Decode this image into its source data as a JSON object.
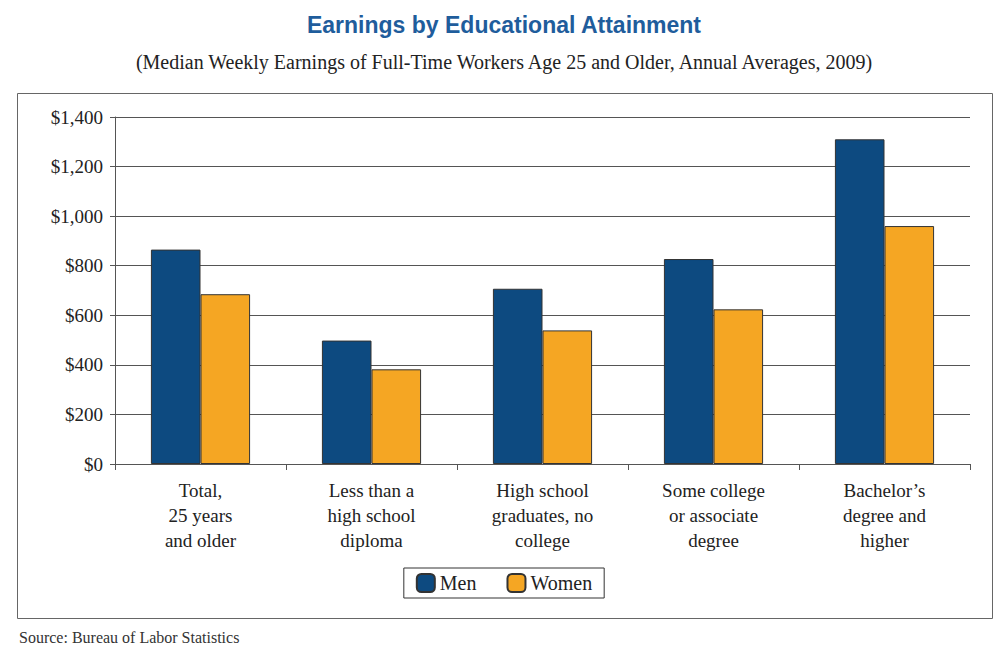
{
  "chart_data": {
    "type": "bar",
    "title": "Earnings by Educational Attainment",
    "subtitle": "(Median Weekly Earnings of Full-Time Workers Age 25 and Older, Annual Averages, 2009)",
    "source": "Source: Bureau of Labor Statistics",
    "categories": [
      "Total,\n25 years\nand older",
      "Less than a\nhigh school\ndiploma",
      "High school\ngraduates, no\ncollege",
      "Some college\nor associate\ndegree",
      "Bachelor’s\ndegree and\nhigher"
    ],
    "series": [
      {
        "name": "Men",
        "color": "#0d4a80",
        "values": [
          865,
          498,
          707,
          827,
          1310
        ]
      },
      {
        "name": "Women",
        "color": "#f5a623",
        "values": [
          685,
          382,
          539,
          624,
          960
        ]
      }
    ],
    "ylim": [
      0,
      1400
    ],
    "yticks": [
      {
        "value": 0,
        "label": "$0"
      },
      {
        "value": 200,
        "label": "$200"
      },
      {
        "value": 400,
        "label": "$400"
      },
      {
        "value": 600,
        "label": "$600"
      },
      {
        "value": 800,
        "label": "$800"
      },
      {
        "value": 1000,
        "label": "$1,000"
      },
      {
        "value": 1200,
        "label": "$1,200"
      },
      {
        "value": 1400,
        "label": "$1,400"
      }
    ],
    "grid": true,
    "legend": "bottom"
  }
}
